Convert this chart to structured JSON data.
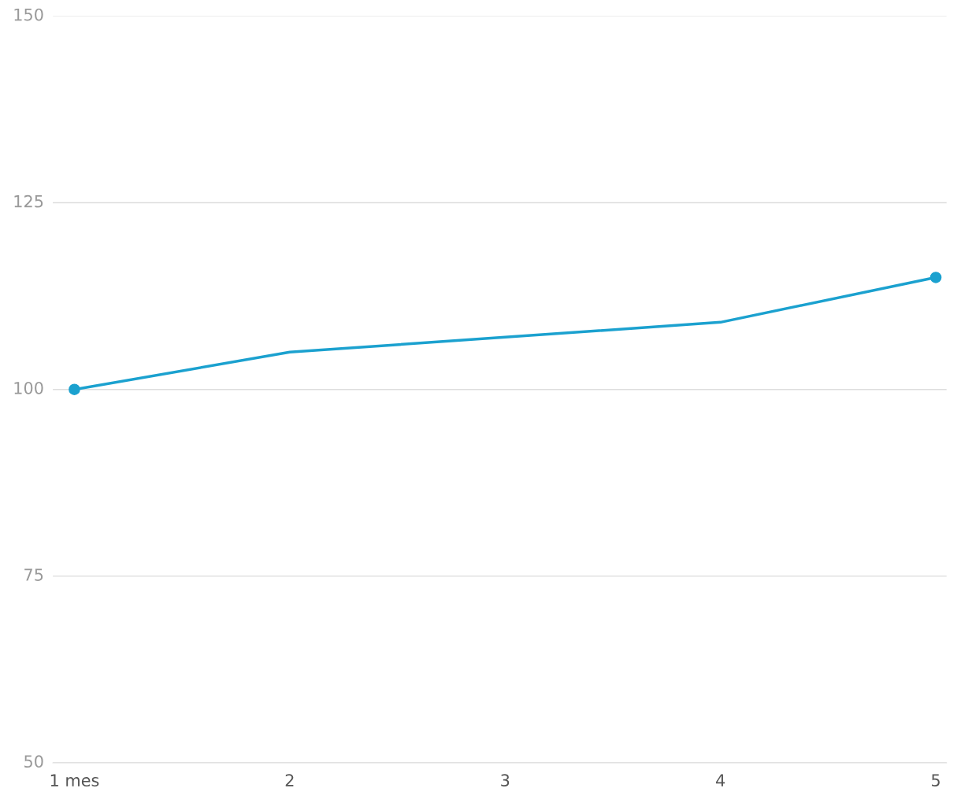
{
  "chart_data": {
    "type": "line",
    "categories": [
      "1 mes",
      "2",
      "3",
      "4",
      "5"
    ],
    "series": [
      {
        "color": "#1ba1cf",
        "values": [
          100,
          105,
          107,
          109,
          115
        ],
        "marker": "none"
      },
      {
        "type": "scatter",
        "color": "#1ba1cf",
        "values": [
          100,
          null,
          null,
          null,
          115
        ],
        "marker": "circle"
      }
    ],
    "ylim": [
      50,
      150
    ],
    "yticks": [
      50,
      75,
      100,
      125,
      150
    ],
    "grid": "y",
    "line_style": "solid"
  }
}
